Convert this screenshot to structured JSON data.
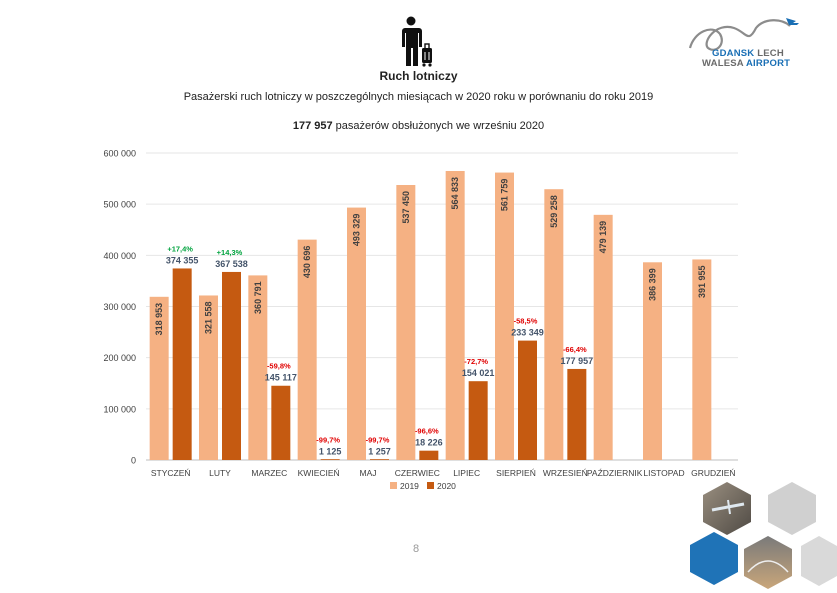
{
  "header": {
    "title": "Ruch lotniczy",
    "subtitle": "Pasażerski ruch lotniczy w poszczególnych miesiącach w 2020 roku w porównaniu do roku 2019",
    "highlight_value": "177 957",
    "highlight_text": " pasażerów obsłużonych we wrześniu 2020"
  },
  "logo": {
    "line1_a": "GDANSK",
    "line1_b": " LECH",
    "line2_a": "WALESA ",
    "line2_b": "AIRPORT"
  },
  "footer": {
    "page_number": "8"
  },
  "colors": {
    "s2019": "#f5b183",
    "s2020": "#c55a11",
    "positive": "#00a33e",
    "negative": "#e00000",
    "grid": "#e6e6e6",
    "axis": "#bfbfbf",
    "brand_blue": "#1a6fb5"
  },
  "chart_data": {
    "type": "bar",
    "categories": [
      "STYCZEŃ",
      "LUTY",
      "MARZEC",
      "KWIECIEŃ",
      "MAJ",
      "CZERWIEC",
      "LIPIEC",
      "SIERPIEŃ",
      "WRZESIEŃ",
      "PAŹDZIERNIK",
      "LISTOPAD",
      "GRUDZIEŃ"
    ],
    "series": [
      {
        "name": "2019",
        "values": [
          318953,
          321558,
          360791,
          430696,
          493329,
          537450,
          564833,
          561759,
          529258,
          479139,
          386399,
          391955
        ],
        "labels": [
          "318 953",
          "321 558",
          "360 791",
          "430 696",
          "493 329",
          "537 450",
          "564 833",
          "561 759",
          "529 258",
          "479 139",
          "386 399",
          "391 955"
        ]
      },
      {
        "name": "2020",
        "values": [
          374355,
          367538,
          145117,
          1125,
          1257,
          18226,
          154021,
          233349,
          177957,
          null,
          null,
          null
        ],
        "labels": [
          "374 355",
          "367 538",
          "145 117",
          "1 125",
          "1 257",
          "18 226",
          "154 021",
          "233 349",
          "177 957",
          "",
          "",
          ""
        ]
      }
    ],
    "change_labels": [
      "+17,4%",
      "+14,3%",
      "-59,8%",
      "-99,7%",
      "-99,7%",
      "-96,6%",
      "-72,7%",
      "-58,5%",
      "-66,4%",
      "",
      "",
      ""
    ],
    "ylim": [
      0,
      600000
    ],
    "yticks": [
      0,
      100000,
      200000,
      300000,
      400000,
      500000,
      600000
    ],
    "ytick_labels": [
      "0",
      "100 000",
      "200 000",
      "300 000",
      "400 000",
      "500 000",
      "600 000"
    ],
    "grid": true,
    "legend": "bottom",
    "legend_entries": [
      "2019",
      "2020"
    ]
  }
}
